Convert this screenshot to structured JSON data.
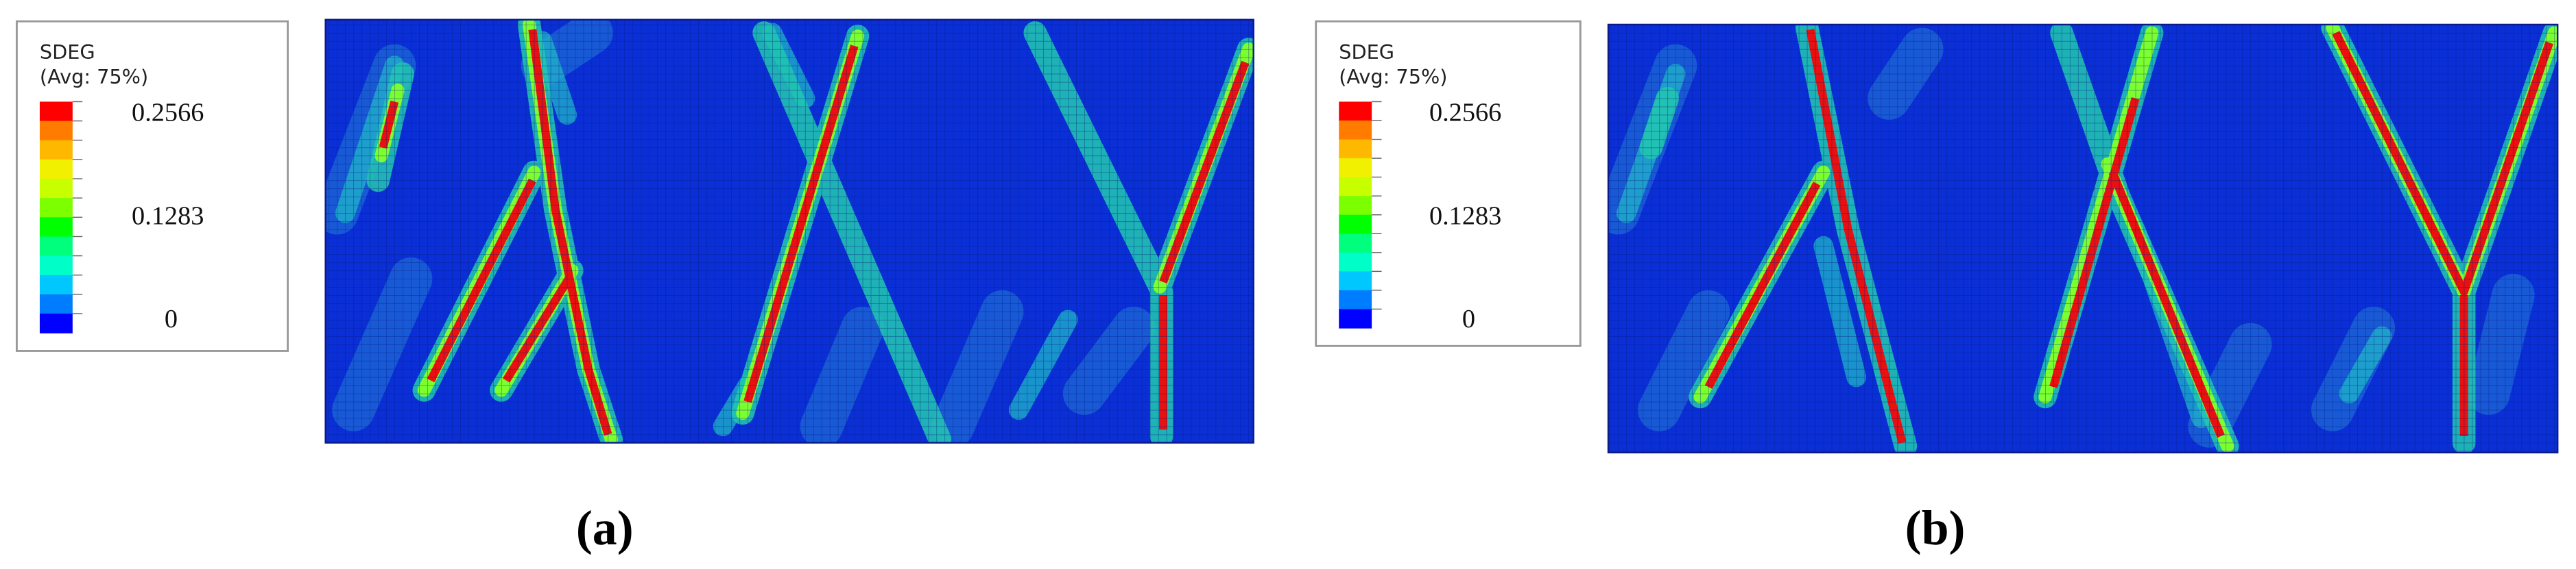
{
  "legend_colors": [
    "#ff0000",
    "#ff7c00",
    "#ffb800",
    "#f0f000",
    "#c8ff00",
    "#7cff00",
    "#00ff00",
    "#00ff7c",
    "#00ffc8",
    "#00c8ff",
    "#007cff",
    "#0000ff"
  ],
  "panels": [
    {
      "legend": {
        "title": "SDEG",
        "subtitle": "(Avg: 75%)",
        "labels": [
          "0.2566",
          "0.1283",
          "0"
        ]
      },
      "caption": "(a)"
    },
    {
      "legend": {
        "title": "SDEG",
        "subtitle": "(Avg: 75%)",
        "labels": [
          "0.2566",
          "0.1283",
          "0"
        ]
      },
      "caption": "(b)"
    }
  ]
}
